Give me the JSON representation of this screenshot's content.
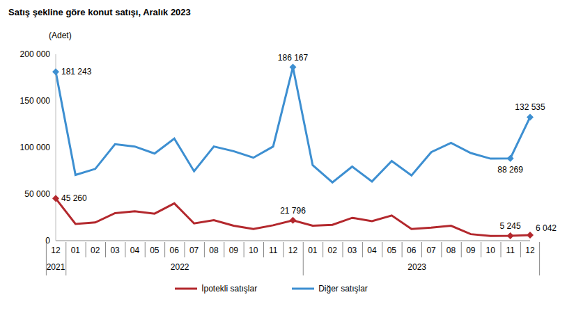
{
  "chart_data": {
    "type": "line",
    "title": "Satış şekline göre konut satışı, Aralık 2023",
    "y_label": "(Adet)",
    "categories": [
      "12",
      "01",
      "02",
      "03",
      "04",
      "05",
      "06",
      "07",
      "08",
      "09",
      "10",
      "11",
      "12",
      "01",
      "02",
      "03",
      "04",
      "05",
      "06",
      "07",
      "08",
      "09",
      "10",
      "11",
      "12"
    ],
    "x_groups": [
      {
        "label": "2021",
        "count": 1
      },
      {
        "label": "2022",
        "count": 12
      },
      {
        "label": "2023",
        "count": 12
      }
    ],
    "ylim": [
      0,
      200000
    ],
    "yticks": [
      0,
      {
        "value": 50000,
        "label": "50 000"
      },
      {
        "value": 100000,
        "label": "100 000"
      },
      {
        "value": 150000,
        "label": "150 000"
      },
      {
        "value": 200000,
        "label": "200 000"
      }
    ],
    "grid": false,
    "legend": "bottom",
    "data_labels": true,
    "series": [
      {
        "name": "İpotekli satışlar",
        "color": "#b3282d",
        "marker": "diamond",
        "values": [
          45260,
          18000,
          19500,
          29500,
          31500,
          29000,
          40000,
          18500,
          22000,
          16000,
          12500,
          16500,
          21796,
          16000,
          17000,
          24500,
          21000,
          27000,
          12500,
          14000,
          16000,
          7000,
          5000,
          5245,
          6042
        ],
        "value_labels": [
          "45 260",
          null,
          null,
          null,
          null,
          null,
          null,
          null,
          null,
          null,
          null,
          null,
          "21 796",
          null,
          null,
          null,
          null,
          null,
          null,
          null,
          null,
          null,
          null,
          "5 245",
          "6 042"
        ]
      },
      {
        "name": "Diğer satışlar",
        "color": "#3d8fd1",
        "marker": "diamond",
        "values": [
          181243,
          70500,
          77000,
          103500,
          101000,
          93500,
          109500,
          74500,
          101000,
          96000,
          89000,
          101000,
          186167,
          81000,
          62500,
          79500,
          63500,
          85500,
          70000,
          95000,
          105000,
          94000,
          88000,
          88269,
          132535
        ],
        "value_labels": [
          "181 243",
          null,
          null,
          null,
          null,
          null,
          null,
          null,
          null,
          null,
          null,
          null,
          "186 167",
          null,
          null,
          null,
          null,
          null,
          null,
          null,
          null,
          null,
          null,
          "88 269",
          "132 535"
        ]
      }
    ]
  }
}
